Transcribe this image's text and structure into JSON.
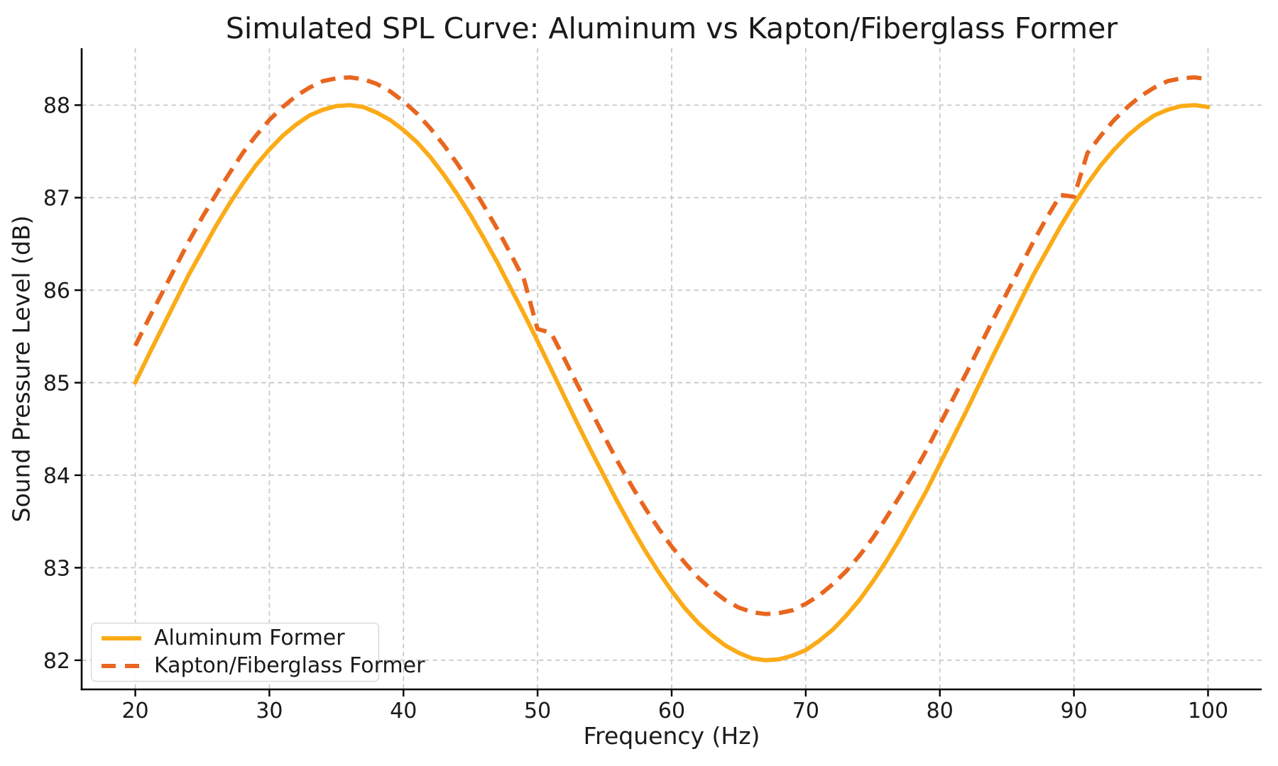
{
  "figure": {
    "background": "#ffffff"
  },
  "chart_data": {
    "type": "line",
    "title": "Simulated SPL Curve: Aluminum vs Kapton/Fiberglass Former",
    "xlabel": "Frequency (Hz)",
    "ylabel": "Sound Pressure Level (dB)",
    "xlim": [
      16,
      104
    ],
    "ylim": [
      81.685,
      88.615
    ],
    "xticks": [
      20,
      30,
      40,
      50,
      60,
      70,
      80,
      90,
      100
    ],
    "yticks": [
      82,
      83,
      84,
      85,
      86,
      87,
      88
    ],
    "grid": true,
    "legend_position": "lower left",
    "x": [
      20,
      21,
      22,
      23,
      24,
      25,
      26,
      27,
      28,
      29,
      30,
      31,
      32,
      33,
      34,
      35,
      36,
      37,
      38,
      39,
      40,
      41,
      42,
      43,
      44,
      45,
      46,
      47,
      48,
      49,
      50,
      51,
      52,
      53,
      54,
      55,
      56,
      57,
      58,
      59,
      60,
      61,
      62,
      63,
      64,
      65,
      66,
      67,
      68,
      69,
      70,
      71,
      72,
      73,
      74,
      75,
      76,
      77,
      78,
      79,
      80,
      81,
      82,
      83,
      84,
      85,
      86,
      87,
      88,
      89,
      90,
      91,
      92,
      93,
      94,
      95,
      96,
      97,
      98,
      99,
      100
    ],
    "series": [
      {
        "name": "Aluminum Former",
        "color": "#FBAB17",
        "style": "solid",
        "values": [
          85.0,
          85.3,
          85.59,
          85.88,
          86.17,
          86.43,
          86.69,
          86.93,
          87.15,
          87.35,
          87.52,
          87.67,
          87.79,
          87.89,
          87.95,
          87.99,
          88.0,
          87.98,
          87.92,
          87.84,
          87.73,
          87.6,
          87.44,
          87.25,
          87.04,
          86.81,
          86.56,
          86.3,
          86.02,
          85.74,
          85.45,
          85.15,
          84.85,
          84.55,
          84.26,
          83.98,
          83.7,
          83.44,
          83.19,
          82.96,
          82.75,
          82.56,
          82.4,
          82.27,
          82.16,
          82.08,
          82.02,
          82.0,
          82.01,
          82.05,
          82.11,
          82.21,
          82.33,
          82.48,
          82.65,
          82.85,
          83.07,
          83.31,
          83.57,
          83.83,
          84.12,
          84.41,
          84.7,
          85.0,
          85.3,
          85.59,
          85.88,
          86.17,
          86.43,
          86.69,
          86.93,
          87.15,
          87.35,
          87.52,
          87.67,
          87.79,
          87.89,
          87.95,
          87.99,
          88.0,
          87.98
        ]
      },
      {
        "name": "Kapton/Fiberglass Former",
        "color": "#E8661F",
        "style": "dashed",
        "values": [
          85.4,
          85.69,
          85.97,
          86.25,
          86.53,
          86.79,
          87.03,
          87.26,
          87.48,
          87.67,
          87.84,
          87.98,
          88.1,
          88.19,
          88.26,
          88.29,
          88.3,
          88.28,
          88.23,
          88.15,
          88.04,
          87.91,
          87.75,
          87.57,
          87.37,
          87.15,
          86.91,
          86.66,
          86.39,
          86.11,
          85.58,
          85.54,
          85.26,
          84.97,
          84.69,
          84.41,
          84.14,
          83.89,
          83.65,
          83.43,
          83.23,
          83.05,
          82.89,
          82.76,
          82.65,
          82.57,
          82.52,
          82.5,
          82.51,
          82.54,
          82.61,
          82.7,
          82.82,
          82.96,
          83.13,
          83.32,
          83.54,
          83.77,
          84.01,
          84.27,
          84.55,
          84.83,
          85.11,
          85.4,
          85.69,
          85.97,
          86.25,
          86.53,
          86.79,
          87.03,
          87.01,
          87.48,
          87.67,
          87.84,
          87.98,
          88.1,
          88.19,
          88.26,
          88.29,
          88.3,
          88.28
        ]
      }
    ]
  }
}
